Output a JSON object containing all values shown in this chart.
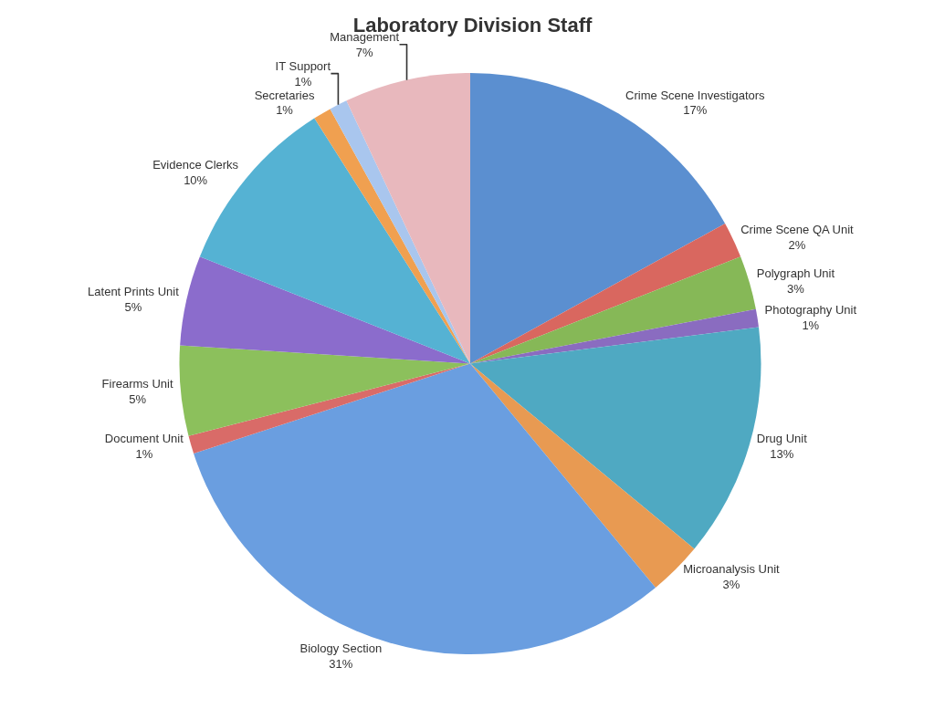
{
  "chart_data": {
    "type": "pie",
    "title": "Laboratory Division Staff",
    "categories": [
      "Crime Scene Investigators",
      "Crime Scene QA Unit",
      "Polygraph Unit",
      "Photography Unit",
      "Drug Unit",
      "Microanalysis Unit",
      "Biology Section",
      "Document Unit",
      "Firearms Unit",
      "Latent Prints Unit",
      "Evidence Clerks",
      "Secretaries",
      "IT Support",
      "Management"
    ],
    "values": [
      17,
      2,
      3,
      1,
      13,
      3,
      31,
      1,
      5,
      5,
      10,
      1,
      1,
      7
    ],
    "value_labels": [
      "17%",
      "2%",
      "3%",
      "1%",
      "13%",
      "3%",
      "31%",
      "1%",
      "5%",
      "5%",
      "10%",
      "1%",
      "1%",
      "7%"
    ],
    "colors": [
      "#5b8fd0",
      "#d9675f",
      "#86b857",
      "#8a6cc0",
      "#4fa9c2",
      "#e89a52",
      "#6a9ee0",
      "#d96b68",
      "#8cc05c",
      "#8b6ccc",
      "#55b2d3",
      "#f0a050",
      "#a9c6ee",
      "#e8b8bd"
    ],
    "legend": false
  }
}
